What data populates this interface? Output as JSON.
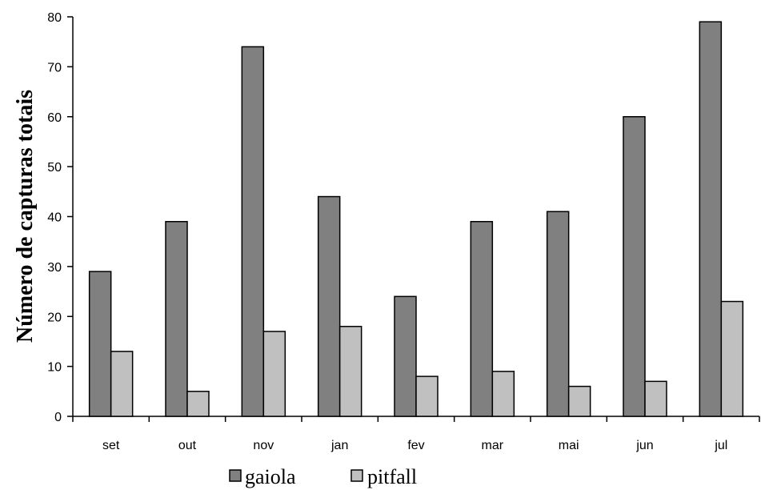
{
  "chart_data": {
    "type": "bar",
    "categories": [
      "set",
      "out",
      "nov",
      "jan",
      "fev",
      "mar",
      "mai",
      "jun",
      "jul"
    ],
    "series": [
      {
        "name": "gaiola",
        "values": [
          29,
          39,
          74,
          44,
          24,
          39,
          41,
          60,
          79
        ]
      },
      {
        "name": "pitfall",
        "values": [
          13,
          5,
          17,
          18,
          8,
          9,
          6,
          7,
          23
        ]
      }
    ],
    "title": "",
    "xlabel": "",
    "ylabel": "Número de capturas totais",
    "ylim": [
      0,
      80
    ],
    "yticks": [
      0,
      10,
      20,
      30,
      40,
      50,
      60,
      70,
      80
    ],
    "grid": false,
    "legend_position": "bottom",
    "colors": {
      "gaiola": "#808080",
      "pitfall": "#c0c0c0",
      "outline": "#000000"
    }
  }
}
